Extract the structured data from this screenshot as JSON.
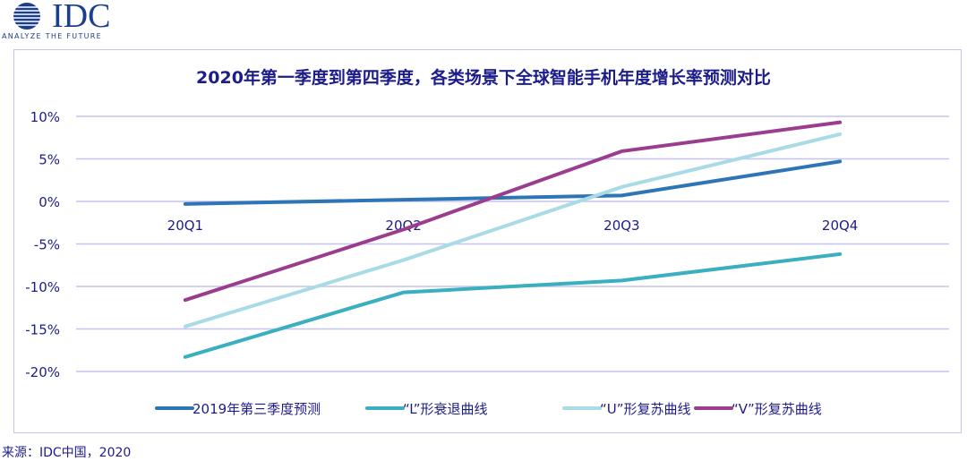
{
  "logo": {
    "text": "IDC",
    "tagline": "ANALYZE THE FUTURE"
  },
  "source": "来源：IDC中国，2020",
  "chart_data": {
    "type": "line",
    "title": "2020年第一季度到第四季度，各类场景下全球智能手机年度增长率预测对比",
    "categories": [
      "20Q1",
      "20Q2",
      "20Q3",
      "20Q4"
    ],
    "ylim": [
      -20,
      10
    ],
    "yticks": [
      10,
      5,
      0,
      -5,
      -10,
      -15,
      -20
    ],
    "ytick_format": "%",
    "grid": true,
    "legend_position": "bottom",
    "series": [
      {
        "name": "2019年第三季度预测",
        "color": "#2e75b6",
        "values": [
          -0.3,
          0.2,
          0.7,
          4.7
        ]
      },
      {
        "name": "“L”形衰退曲线",
        "color": "#3aafc0",
        "values": [
          -18.3,
          -10.7,
          -9.3,
          -6.2
        ]
      },
      {
        "name": "“U”形复苏曲线",
        "color": "#a8dbe6",
        "values": [
          -14.7,
          -6.9,
          1.7,
          7.9
        ]
      },
      {
        "name": "“V”形复苏曲线",
        "color": "#9b3d8f",
        "values": [
          -11.6,
          -3.3,
          5.9,
          9.3
        ]
      }
    ]
  }
}
